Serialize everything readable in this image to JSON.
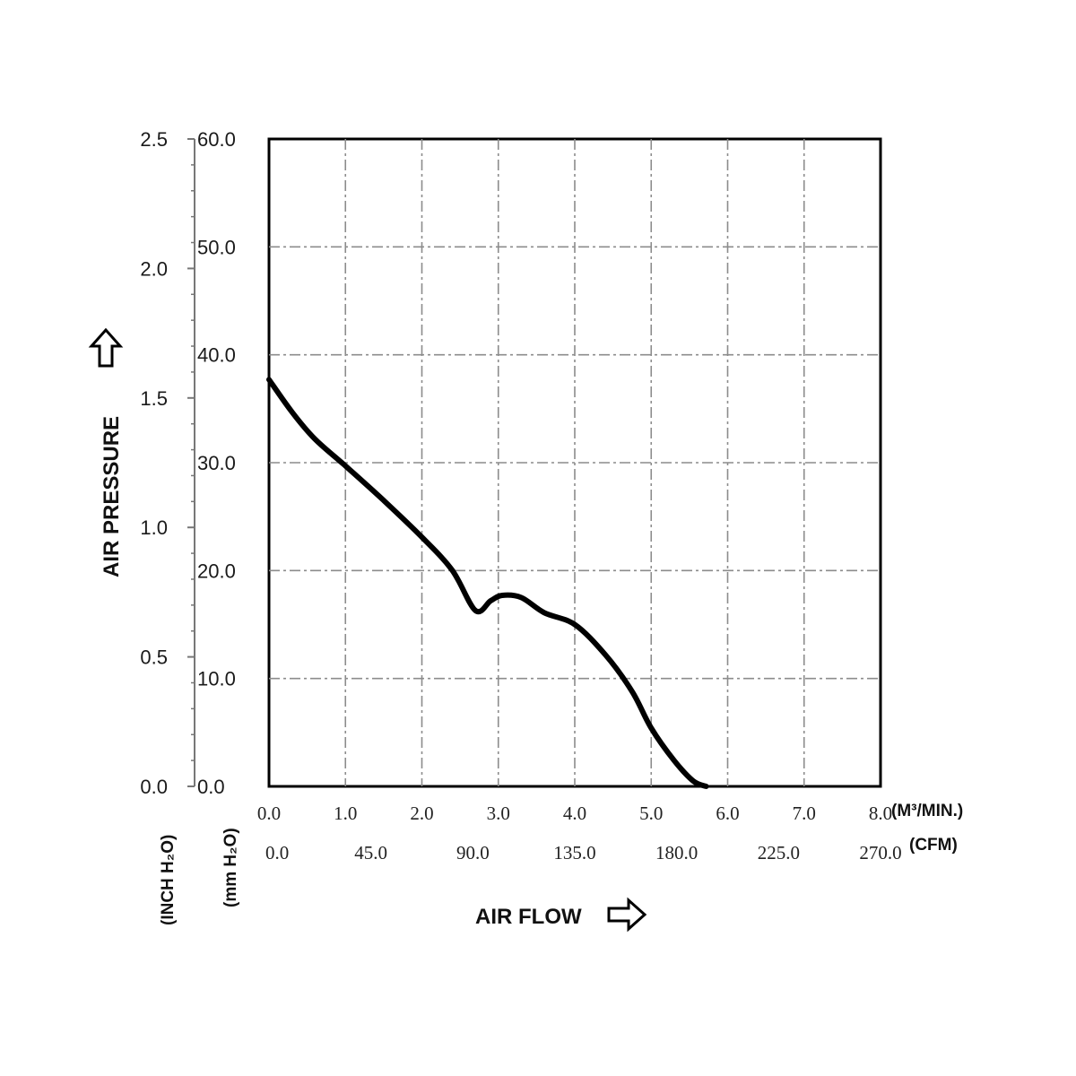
{
  "chart_data": {
    "type": "line",
    "x_primary": {
      "unit_label": "(M³/MIN.)",
      "range": [
        0,
        8
      ],
      "ticks": [
        "0.0",
        "1.0",
        "2.0",
        "3.0",
        "4.0",
        "5.0",
        "6.0",
        "7.0",
        "8.0"
      ]
    },
    "x_secondary": {
      "unit_label": "(CFM)",
      "range": [
        0,
        270
      ],
      "ticks": [
        "0.0",
        "45.0",
        "90.0",
        "135.0",
        "180.0",
        "225.0",
        "270.0"
      ]
    },
    "y_primary": {
      "unit_label": "(mm H₂O)",
      "range": [
        0,
        60
      ],
      "ticks": [
        "0.0",
        "10.0",
        "20.0",
        "30.0",
        "40.0",
        "50.0",
        "60.0"
      ]
    },
    "y_secondary": {
      "unit_label": "(INCH H₂O)",
      "range": [
        0,
        2.5
      ],
      "ticks": [
        "0.0",
        "0.5",
        "1.0",
        "1.5",
        "2.0",
        "2.5"
      ]
    },
    "xlabel": "AIR FLOW",
    "ylabel": "AIR PRESSURE",
    "grid": true,
    "series": [
      {
        "x": [
          0.0,
          0.3,
          0.6,
          1.0,
          1.5,
          2.0,
          2.4,
          2.7,
          2.9,
          3.05,
          3.3,
          3.6,
          4.0,
          4.4,
          4.75,
          5.0,
          5.3,
          5.55,
          5.72
        ],
        "y": [
          37.7,
          34.7,
          32.2,
          29.7,
          26.5,
          23.1,
          20.0,
          16.3,
          17.2,
          17.7,
          17.5,
          16.1,
          15.0,
          12.2,
          8.8,
          5.4,
          2.4,
          0.5,
          0.0
        ]
      }
    ]
  }
}
